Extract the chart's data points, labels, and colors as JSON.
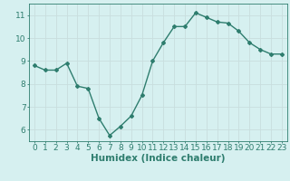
{
  "x": [
    0,
    1,
    2,
    3,
    4,
    5,
    6,
    7,
    8,
    9,
    10,
    11,
    12,
    13,
    14,
    15,
    16,
    17,
    18,
    19,
    20,
    21,
    22,
    23
  ],
  "y": [
    8.8,
    8.6,
    8.6,
    8.9,
    7.9,
    7.8,
    6.5,
    5.75,
    6.15,
    6.6,
    7.5,
    9.0,
    9.8,
    10.5,
    10.5,
    11.1,
    10.9,
    10.7,
    10.65,
    10.3,
    9.8,
    9.5,
    9.3,
    9.3
  ],
  "line_color": "#2e7d6e",
  "marker": "D",
  "marker_size": 2.0,
  "bg_color": "#d6f0f0",
  "grid_color": "#c8dede",
  "tick_color": "#2e7d6e",
  "xlabel": "Humidex (Indice chaleur)",
  "xlabel_fontsize": 7.5,
  "ylim": [
    5.5,
    11.5
  ],
  "yticks": [
    6,
    7,
    8,
    9,
    10,
    11
  ],
  "xticks": [
    0,
    1,
    2,
    3,
    4,
    5,
    6,
    7,
    8,
    9,
    10,
    11,
    12,
    13,
    14,
    15,
    16,
    17,
    18,
    19,
    20,
    21,
    22,
    23
  ],
  "tick_fontsize": 6.5,
  "linewidth": 1.0
}
